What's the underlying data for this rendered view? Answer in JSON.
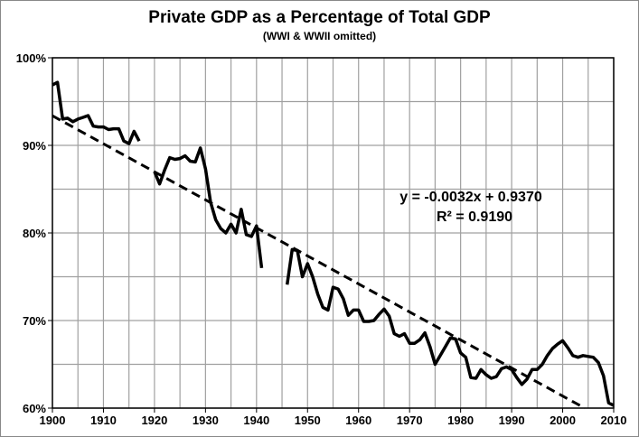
{
  "chart_data": {
    "type": "line",
    "title": "Private GDP as a Percentage of Total GDP",
    "subtitle": "(WWI & WWII omitted)",
    "xlabel": "",
    "ylabel": "",
    "xlim": [
      1900,
      2010
    ],
    "ylim": [
      60,
      100
    ],
    "x_ticks": [
      1900,
      1910,
      1920,
      1930,
      1940,
      1950,
      1960,
      1970,
      1980,
      1990,
      2000,
      2010
    ],
    "y_ticks": [
      "60%",
      "70%",
      "80%",
      "90%",
      "100%"
    ],
    "y_tick_values": [
      60,
      70,
      80,
      90,
      100
    ],
    "grid": true,
    "grid_step_x": 5,
    "grid_step_y": 5,
    "legend": "none",
    "line_color": "#000000",
    "grid_color": "#a0a0a0",
    "series": [
      {
        "x": [
          1900,
          1901,
          1902,
          1903,
          1904,
          1905,
          1906,
          1907,
          1908,
          1909,
          1910,
          1911,
          1912,
          1913,
          1914,
          1915,
          1916,
          1917,
          1918,
          1919,
          1920,
          1921,
          1922,
          1923,
          1924,
          1925,
          1926,
          1927,
          1928,
          1929,
          1930,
          1931,
          1932,
          1933,
          1934,
          1935,
          1936,
          1937,
          1938,
          1939,
          1940,
          1941,
          1942,
          1943,
          1944,
          1945,
          1946,
          1947,
          1948,
          1949,
          1950,
          1951,
          1952,
          1953,
          1954,
          1955,
          1956,
          1957,
          1958,
          1959,
          1960,
          1961,
          1962,
          1963,
          1964,
          1965,
          1966,
          1967,
          1968,
          1969,
          1970,
          1971,
          1972,
          1973,
          1974,
          1975,
          1976,
          1977,
          1978,
          1979,
          1980,
          1981,
          1982,
          1983,
          1984,
          1985,
          1986,
          1987,
          1988,
          1989,
          1990,
          1991,
          1992,
          1993,
          1994,
          1995,
          1996,
          1997,
          1998,
          1999,
          2000,
          2001,
          2002,
          2003,
          2004,
          2005,
          2006,
          2007,
          2008,
          2009,
          2010
        ],
        "values": [
          96.9,
          97.2,
          93.0,
          93.1,
          92.7,
          93.0,
          93.2,
          93.4,
          92.2,
          92.1,
          92.1,
          91.8,
          91.9,
          91.9,
          90.5,
          90.2,
          91.6,
          90.5,
          null,
          null,
          87.0,
          85.6,
          87.2,
          88.6,
          88.4,
          88.5,
          88.8,
          88.2,
          88.1,
          89.7,
          87.3,
          83.5,
          81.5,
          80.5,
          80.0,
          81.0,
          80.0,
          82.7,
          79.8,
          79.6,
          80.8,
          76.0,
          null,
          null,
          null,
          null,
          74.1,
          78.1,
          78.0,
          75.0,
          76.5,
          75.0,
          73.0,
          71.5,
          71.2,
          73.8,
          73.6,
          72.5,
          70.6,
          71.2,
          71.2,
          69.9,
          69.9,
          70.0,
          70.7,
          71.3,
          70.5,
          68.5,
          68.2,
          68.5,
          67.4,
          67.4,
          67.8,
          68.6,
          67.0,
          65.0,
          66.0,
          67.0,
          68.0,
          67.9,
          66.3,
          65.8,
          63.5,
          63.4,
          64.4,
          63.8,
          63.4,
          63.6,
          64.5,
          64.7,
          64.4,
          63.5,
          62.7,
          63.3,
          64.4,
          64.4,
          65.0,
          66.0,
          66.8,
          67.3,
          67.7,
          66.9,
          66.0,
          65.8,
          66.0,
          65.9,
          65.8,
          65.2,
          63.7,
          60.6,
          60.3
        ]
      }
    ],
    "trendline": {
      "type": "linear",
      "slope": -0.0032,
      "intercept": 0.937,
      "equation": "y = -0.0032x + 0.9370",
      "r_squared": "R² = 0.9190",
      "style": "dashed"
    }
  }
}
